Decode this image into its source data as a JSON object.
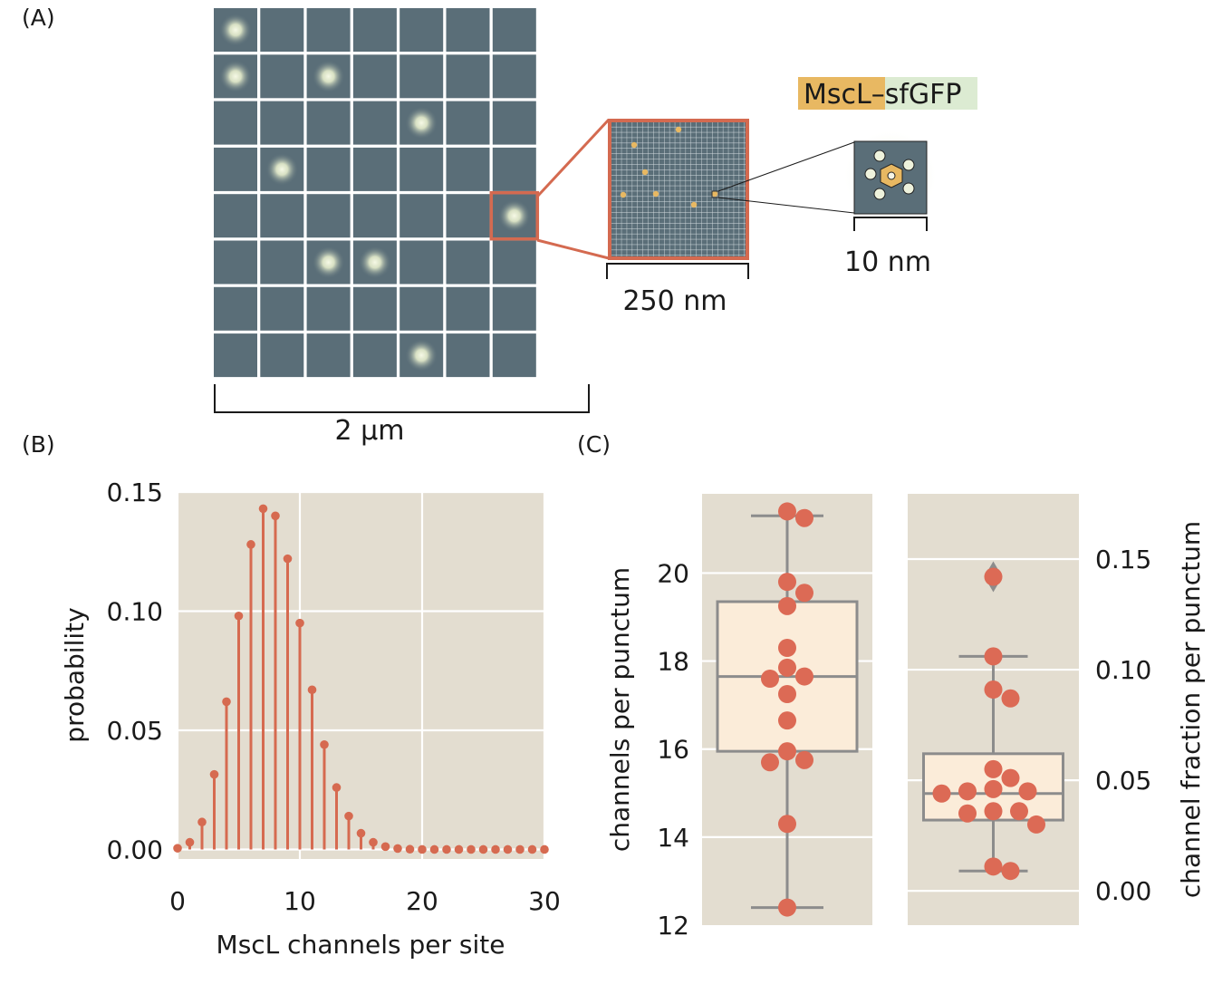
{
  "panels": {
    "a": {
      "label": "(A)"
    },
    "b": {
      "label": "(B)"
    },
    "c": {
      "label": "(C)"
    }
  },
  "schematic": {
    "grid_rows": 8,
    "grid_cols": 7,
    "puncta": [
      [
        0,
        0
      ],
      [
        1,
        0
      ],
      [
        1,
        2
      ],
      [
        2,
        4
      ],
      [
        3,
        1
      ],
      [
        4,
        6
      ],
      [
        5,
        2
      ],
      [
        5,
        3
      ],
      [
        7,
        4
      ]
    ],
    "zoom_cell": [
      4,
      6
    ],
    "scale_large": "2 μm",
    "scale_mid": "250 nm",
    "scale_small": "10 nm",
    "protein_part1": "MscL",
    "protein_sep": "–",
    "protein_part2": "sfGFP",
    "colors": {
      "cell": "#5a6e78",
      "glow": "#e9f0d0",
      "highlight": "#d46a50",
      "mscl": "#e8b862",
      "sfgfp": "#dcebd2"
    }
  },
  "chart_data": [
    {
      "type": "stem",
      "panel": "B",
      "xlabel": "MscL channels per site",
      "ylabel": "probability",
      "xlim": [
        0,
        30
      ],
      "ylim": [
        -0.004,
        0.15
      ],
      "xticks": [
        "0",
        "10",
        "20",
        "30"
      ],
      "yticks": [
        "0.00",
        "0.05",
        "0.10",
        "0.15"
      ],
      "x": [
        0,
        1,
        2,
        3,
        4,
        5,
        6,
        7,
        8,
        9,
        10,
        11,
        12,
        13,
        14,
        15,
        16,
        17,
        18,
        19,
        20,
        21,
        22,
        23,
        24,
        25,
        26,
        27,
        28,
        29,
        30
      ],
      "y": [
        0.0005,
        0.003,
        0.0115,
        0.0315,
        0.062,
        0.098,
        0.128,
        0.143,
        0.14,
        0.122,
        0.095,
        0.067,
        0.044,
        0.026,
        0.014,
        0.0068,
        0.003,
        0.0012,
        0.0004,
        0.0001,
        0,
        0,
        0,
        0,
        0,
        0,
        0,
        0,
        0,
        0,
        0
      ],
      "color": "#d66a50",
      "background": "#e3ddd0",
      "grid": true
    },
    {
      "type": "box",
      "panel": "C-left",
      "ylabel": "channels per punctum",
      "ylim": [
        12,
        21.8
      ],
      "yticks": [
        "12",
        "14",
        "16",
        "18",
        "20"
      ],
      "box": {
        "q1": 15.95,
        "median": 17.65,
        "q3": 19.35,
        "whisker_low": 12.4,
        "whisker_high": 21.3
      },
      "points": [
        21.4,
        21.25,
        19.8,
        19.55,
        19.25,
        18.3,
        17.85,
        17.65,
        17.6,
        17.25,
        16.65,
        15.95,
        15.75,
        15.7,
        14.3,
        12.4
      ],
      "colors": {
        "point": "#dc6a55",
        "box_fill": "#fbecd9",
        "box_line": "#8c8c8c",
        "background": "#e3ddd0"
      }
    },
    {
      "type": "box",
      "panel": "C-right",
      "ylabel": "channel fraction per punctum",
      "ylim": [
        -0.0155,
        0.1795
      ],
      "yticks": [
        "0.00",
        "0.05",
        "0.10",
        "0.15"
      ],
      "box": {
        "q1": 0.032,
        "median": 0.044,
        "q3": 0.062,
        "whisker_low": 0.009,
        "whisker_high": 0.106
      },
      "outliers": [
        0.142
      ],
      "points": [
        0.142,
        0.106,
        0.091,
        0.087,
        0.055,
        0.051,
        0.046,
        0.045,
        0.044,
        0.045,
        0.036,
        0.035,
        0.036,
        0.03,
        0.011,
        0.009
      ],
      "colors": {
        "point": "#dc6a55",
        "box_fill": "#fbecd9",
        "box_line": "#8c8c8c",
        "background": "#e3ddd0"
      }
    }
  ]
}
